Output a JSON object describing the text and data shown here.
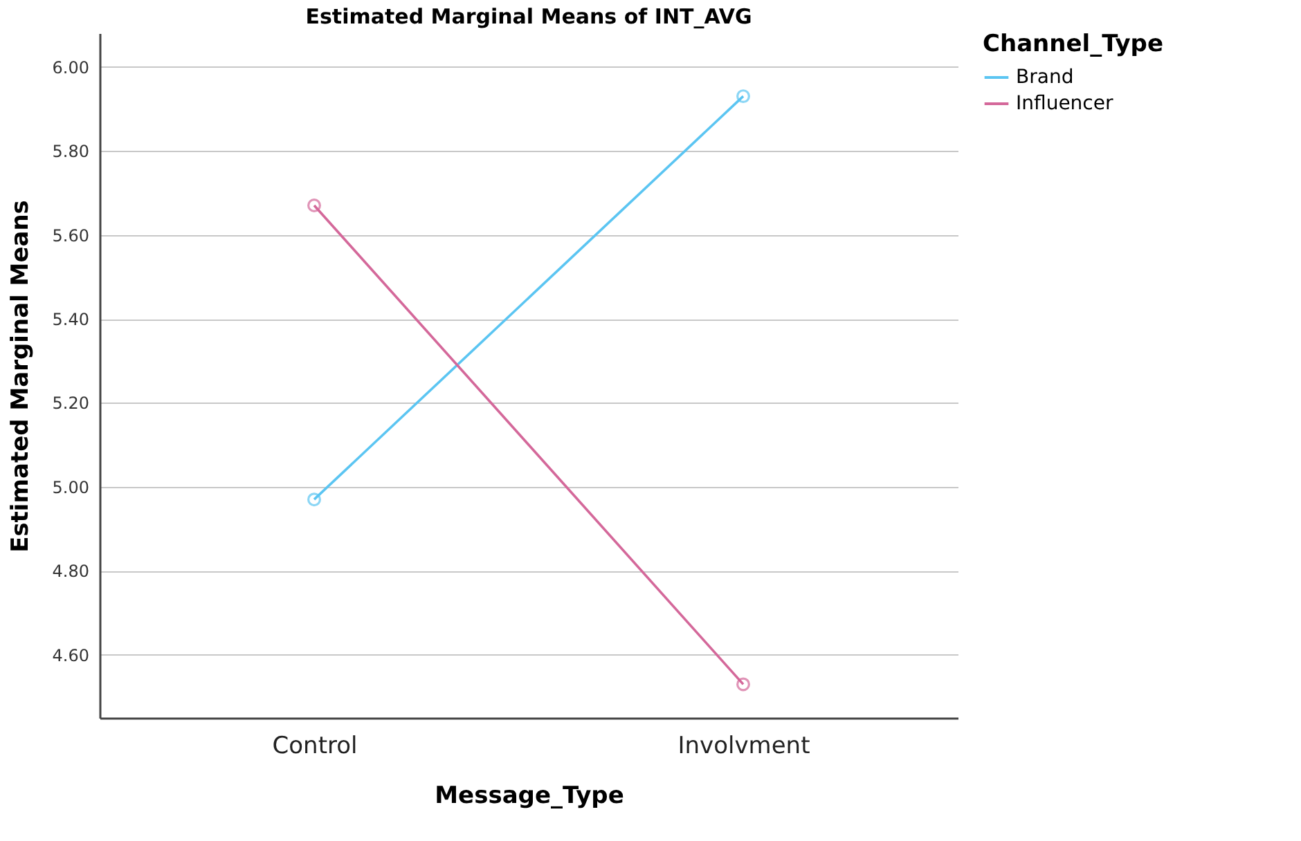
{
  "chart_data": {
    "type": "line",
    "title": "Estimated Marginal Means of INT_AVG",
    "xlabel": "Message_Type",
    "ylabel": "Estimated Marginal Means",
    "legend_title": "Channel_Type",
    "categories": [
      "Control",
      "Involvment"
    ],
    "series": [
      {
        "name": "Brand",
        "color": "#5bc5f2",
        "values": [
          4.97,
          5.93
        ]
      },
      {
        "name": "Influencer",
        "color": "#d4689a",
        "values": [
          5.67,
          4.53
        ]
      }
    ],
    "ylim": [
      4.45,
      6.08
    ],
    "yticks": [
      {
        "value": 4.6,
        "label": "4.60"
      },
      {
        "value": 4.8,
        "label": "4.80"
      },
      {
        "value": 5.0,
        "label": "5.00"
      },
      {
        "value": 5.2,
        "label": "5.20"
      },
      {
        "value": 5.4,
        "label": "5.40"
      },
      {
        "value": 5.6,
        "label": "5.60"
      },
      {
        "value": 5.8,
        "label": "5.80"
      },
      {
        "value": 6.0,
        "label": "6.00"
      }
    ],
    "grid": "y",
    "legend": "top right",
    "marker": "circle",
    "line_style": "solid"
  }
}
